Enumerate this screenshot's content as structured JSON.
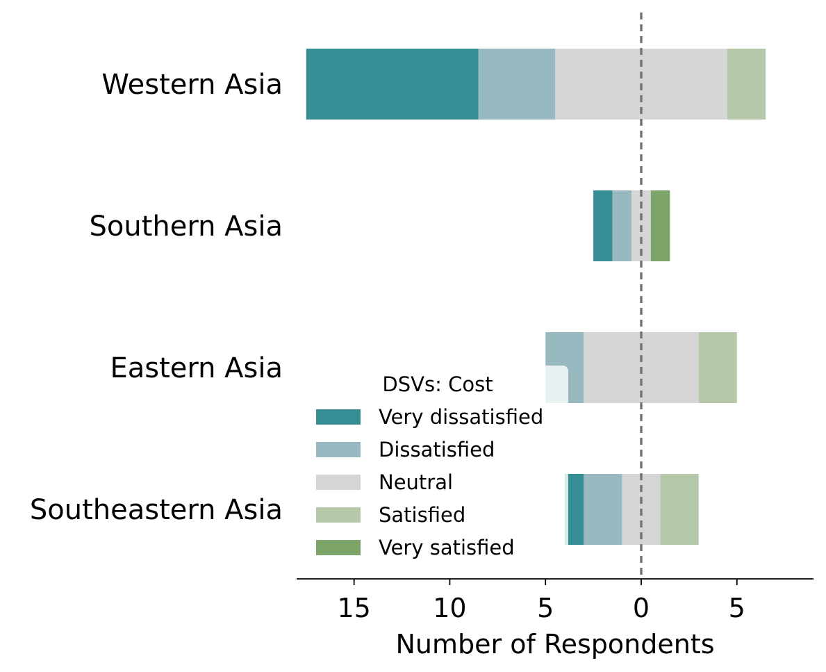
{
  "chart_data": {
    "type": "bar",
    "orientation": "horizontal-diverging",
    "title": "",
    "xlabel": "Number of Respondents",
    "ylabel": "",
    "xlim": [
      -18,
      9
    ],
    "xticks": [
      -15,
      -10,
      -5,
      0,
      5
    ],
    "xtick_labels": [
      "15",
      "10",
      "5",
      "0",
      "5"
    ],
    "categories": [
      "Western Asia",
      "Southern Asia",
      "Eastern Asia",
      "Southeastern Asia"
    ],
    "series": [
      {
        "name": "Very dissatisfied",
        "color": "#368d94",
        "values": [
          9,
          1,
          0,
          1
        ]
      },
      {
        "name": "Dissatisfied",
        "color": "#97b9bf",
        "values": [
          4,
          1,
          2,
          2
        ]
      },
      {
        "name": "Neutral",
        "color": "#d5d5d5",
        "values": [
          9,
          1,
          6,
          2
        ]
      },
      {
        "name": "Satisfied",
        "color": "#b5c9aa",
        "values": [
          2,
          0,
          2,
          2
        ]
      },
      {
        "name": "Very satisfied",
        "color": "#7da56a",
        "values": [
          0,
          1,
          0,
          0
        ]
      }
    ],
    "center_line": {
      "x": 0,
      "style": "dashed",
      "color": "#777777"
    },
    "legend": {
      "title": "DSVs: Cost",
      "placement": "lower-left"
    },
    "grid": false
  }
}
